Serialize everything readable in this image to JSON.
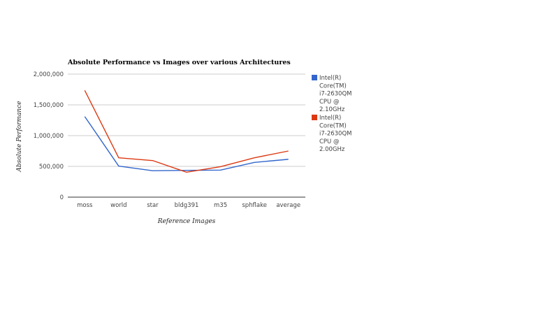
{
  "chart_data": {
    "type": "line",
    "title": "Absolute Performance vs Images over various Architectures",
    "xlabel": "Reference Images",
    "ylabel": "Absolute Performance",
    "categories": [
      "moss",
      "world",
      "star",
      "bldg391",
      "m35",
      "sphflake",
      "average"
    ],
    "ylim": [
      0,
      2000000
    ],
    "yticks": [
      0,
      500000,
      1000000,
      1500000,
      2000000
    ],
    "ytick_labels": [
      "0",
      "500,000",
      "1,000,000",
      "1,500,000",
      "2,000,000"
    ],
    "grid": true,
    "legend_position": "right",
    "series": [
      {
        "name": "Intel(R) Core(TM) i7-2630QM CPU @ 2.10GHz",
        "legend_lines": [
          "Intel(R)",
          "Core(TM)",
          "i7-2630QM",
          "CPU @",
          "2.10GHz"
        ],
        "color": "#3366cc",
        "values": [
          1310000,
          505000,
          430000,
          435000,
          440000,
          565000,
          615000
        ]
      },
      {
        "name": "Intel(R) Core(TM) i7-2630QM CPU @ 2.00GHz",
        "legend_lines": [
          "Intel(R)",
          "Core(TM)",
          "i7-2630QM",
          "CPU @",
          "2.00GHz"
        ],
        "color": "#dc3912",
        "values": [
          1735000,
          640000,
          595000,
          405000,
          495000,
          640000,
          750000
        ]
      }
    ]
  }
}
